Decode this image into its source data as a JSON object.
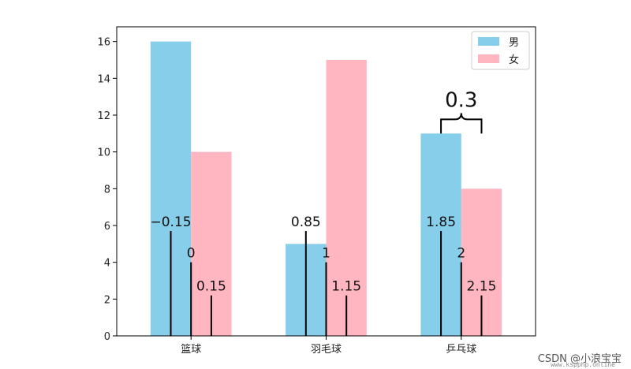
{
  "chart_data": {
    "type": "bar",
    "categories": [
      "篮球",
      "羽毛球",
      "乒乓球"
    ],
    "series": [
      {
        "name": "男",
        "values": [
          16,
          5,
          11
        ],
        "color": "#87CEEB"
      },
      {
        "name": "女",
        "values": [
          10,
          15,
          8
        ],
        "color": "#FFB6C1"
      }
    ],
    "ylim": [
      0,
      16.8
    ],
    "yticks": [
      0,
      2,
      4,
      6,
      8,
      10,
      12,
      14,
      16
    ],
    "legend_position": "top-right",
    "grid": false,
    "annotations": [
      {
        "label": "−0.15",
        "x": -0.15,
        "line_top": 5.7
      },
      {
        "label": "0",
        "x": 0,
        "line_top": 4.0
      },
      {
        "label": "0.15",
        "x": 0.15,
        "line_top": 2.2
      },
      {
        "label": "0.85",
        "x": 0.85,
        "line_top": 5.7
      },
      {
        "label": "1",
        "x": 1,
        "line_top": 4.0
      },
      {
        "label": "1.15",
        "x": 1.15,
        "line_top": 2.2
      },
      {
        "label": "1.85",
        "x": 1.85,
        "line_top": 5.7
      },
      {
        "label": "2",
        "x": 2,
        "line_top": 4.0
      },
      {
        "label": "2.15",
        "x": 2.15,
        "line_top": 2.2
      }
    ],
    "brace": {
      "label": "0.3",
      "x_from": 1.85,
      "x_to": 2.15,
      "y": 11.0
    }
  },
  "watermark": {
    "text": "CSDN @小浪宝宝",
    "sub": "www.kspphp.online"
  }
}
